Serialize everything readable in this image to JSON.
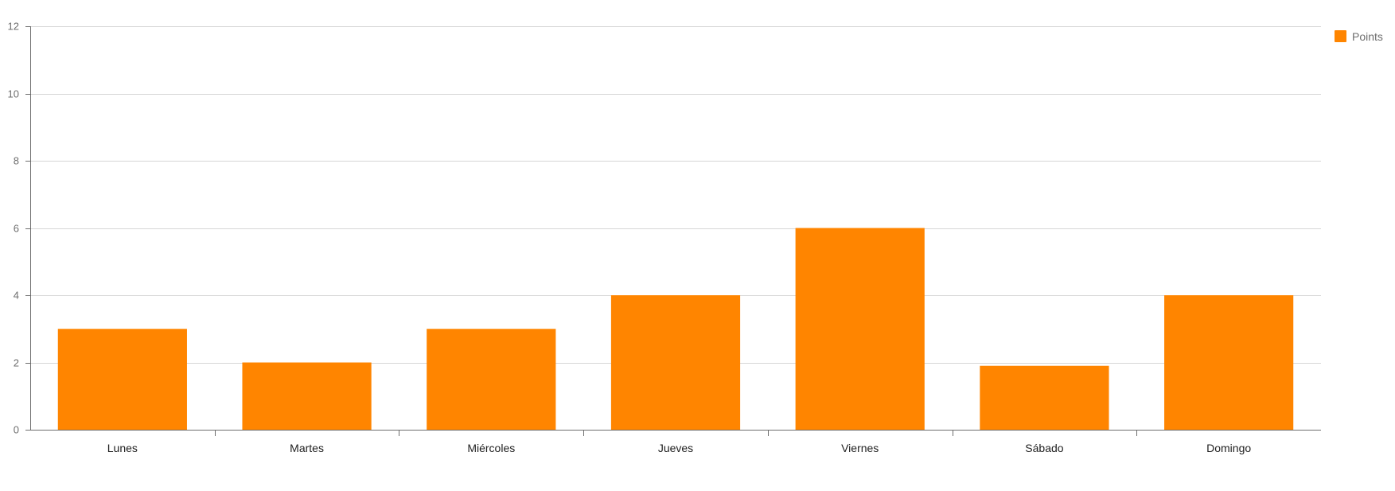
{
  "chart_data": {
    "type": "bar",
    "categories": [
      "Lunes",
      "Martes",
      "Miércoles",
      "Jueves",
      "Viernes",
      "Sábado",
      "Domingo"
    ],
    "series": [
      {
        "name": "Points",
        "values": [
          3,
          2,
          3,
          4,
          6,
          1.9,
          4
        ],
        "color": "#ff8500"
      }
    ],
    "yticks": [
      0,
      2,
      4,
      6,
      8,
      10,
      12
    ],
    "ylim": [
      0,
      12
    ],
    "grid": true,
    "legend_position": "top-right",
    "title": "",
    "xlabel": "",
    "ylabel": ""
  },
  "legend": {
    "label": "Points",
    "color": "#ff8500"
  },
  "colors": {
    "grid": "#d6d6d6",
    "axis": "#6e6e6e",
    "bar": "#ff8500"
  }
}
